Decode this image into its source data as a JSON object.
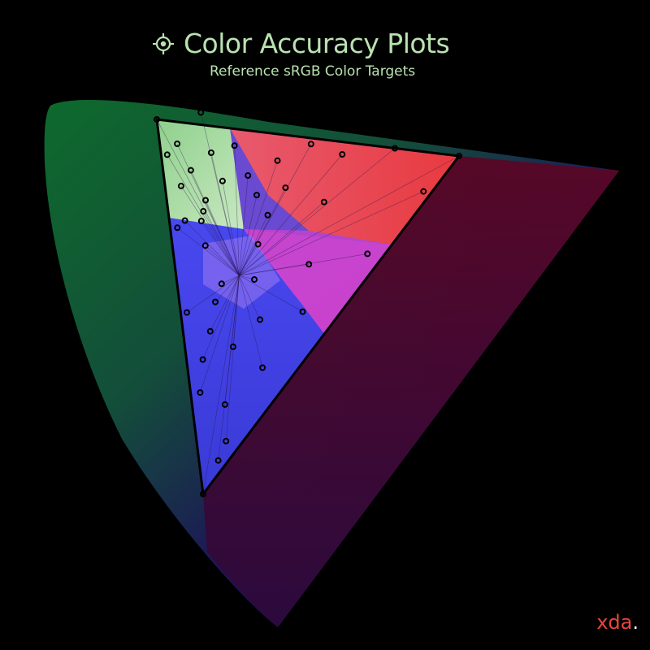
{
  "header": {
    "title": "Color Accuracy Plots",
    "subtitle": "Reference sRGB Color Targets",
    "icon": "target-icon"
  },
  "brand": {
    "name": "xda",
    "dot": "."
  },
  "colors": {
    "title": "#b9e2b0",
    "brand": "#e8463c",
    "background": "#000000"
  },
  "chart_data": {
    "type": "scatter",
    "title": "Color Accuracy Plots",
    "subtitle": "Reference sRGB Color Targets",
    "gamut": {
      "name": "sRGB",
      "red": [
        0.64,
        0.33
      ],
      "green": [
        0.3,
        0.6
      ],
      "blue": [
        0.15,
        0.06
      ],
      "white": [
        0.3127,
        0.329
      ]
    },
    "targets": [
      [
        0.3,
        0.6
      ],
      [
        0.3563,
        0.5773
      ],
      [
        0.4702,
        0.4542
      ],
      [
        0.64,
        0.33
      ],
      [
        0.5782,
        0.3081
      ],
      [
        0.4773,
        0.2647
      ],
      [
        0.225,
        0.165
      ],
      [
        0.15,
        0.06
      ],
      [
        0.2063,
        0.1147
      ],
      [
        0.2301,
        0.3171
      ],
      [
        0.2651,
        0.4386
      ],
      [
        0.2931,
        0.5448
      ],
      [
        0.3109,
        0.5522
      ],
      [
        0.3127,
        0.5064
      ],
      [
        0.5678,
        0.3873
      ],
      [
        0.5017,
        0.4175
      ],
      [
        0.3782,
        0.5079
      ],
      [
        0.4212,
        0.4563
      ],
      [
        0.4159,
        0.4137
      ],
      [
        0.4539,
        0.3664
      ],
      [
        0.3797,
        0.3898
      ],
      [
        0.3522,
        0.3575
      ],
      [
        0.3284,
        0.3125
      ],
      [
        0.2872,
        0.3306
      ],
      [
        0.2697,
        0.3107
      ],
      [
        0.2477,
        0.2747
      ],
      [
        0.2233,
        0.2419
      ],
      [
        0.2021,
        0.1993
      ],
      [
        0.2664,
        0.2371
      ],
      [
        0.3132,
        0.2541
      ],
      [
        0.4019,
        0.2933
      ],
      [
        0.3684,
        0.2338
      ],
      [
        0.2899,
        0.1874
      ],
      [
        0.1864,
        0.0943
      ],
      [
        0.2781,
        0.4427
      ],
      [
        0.2925,
        0.4924
      ],
      [
        0.3052,
        0.4419
      ],
      [
        0.2888,
        0.394
      ],
      [
        0.3138,
        0.4551
      ],
      [
        0.3465,
        0.5153
      ],
      [
        0.3446,
        0.4688
      ],
      [
        0.3779,
        0.4577
      ],
      [
        0.3776,
        0.4248
      ],
      [
        0.2974,
        0.4302
      ]
    ]
  }
}
